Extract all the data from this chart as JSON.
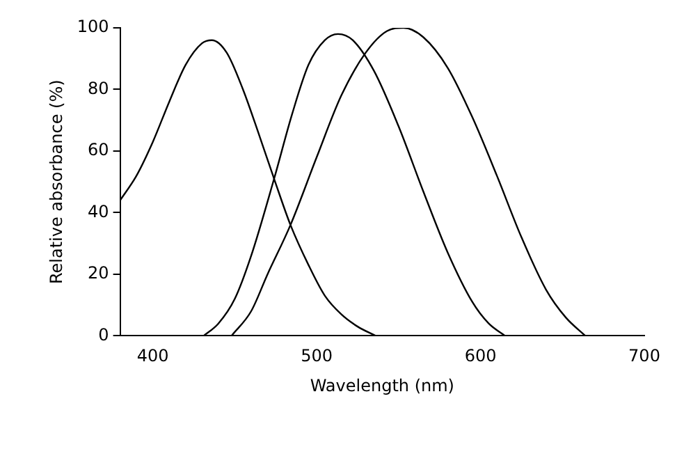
{
  "chart_data": {
    "type": "line",
    "xlabel": "Wavelength (nm)",
    "ylabel": "Relative absorbance (%)",
    "xlim": [
      380,
      700
    ],
    "xticks": [
      400,
      500,
      600,
      700
    ],
    "ylim": [
      0,
      100
    ],
    "yticks": [
      0,
      20,
      40,
      60,
      80,
      100
    ],
    "grid": false,
    "legend": false,
    "marker": "none",
    "line_style": "solid",
    "series": [
      {
        "color": "#000000",
        "x": [
          380,
          390,
          400,
          410,
          420,
          430,
          436,
          445,
          455,
          465,
          474,
          484,
          495,
          505,
          515,
          525,
          536
        ],
        "values": [
          44,
          52,
          63,
          76,
          88,
          95,
          96,
          92,
          80,
          65,
          51,
          36,
          23,
          13,
          7,
          3,
          0
        ]
      },
      {
        "color": "#000000",
        "x": [
          431,
          440,
          450,
          460,
          474,
          485,
          495,
          505,
          513,
          522,
          535,
          550,
          565,
          580,
          595,
          605,
          615
        ],
        "values": [
          0,
          4,
          12,
          26,
          51,
          72,
          88,
          96,
          98,
          96,
          86,
          68,
          47,
          27,
          11,
          4,
          0
        ]
      },
      {
        "color": "#000000",
        "x": [
          448,
          460,
          470,
          484,
          500,
          515,
          530,
          543,
          553,
          565,
          580,
          595,
          610,
          625,
          640,
          652,
          664
        ],
        "values": [
          0,
          8,
          20,
          36,
          58,
          78,
          92,
          99,
          100,
          97,
          87,
          71,
          52,
          32,
          15,
          6,
          0
        ]
      }
    ]
  }
}
